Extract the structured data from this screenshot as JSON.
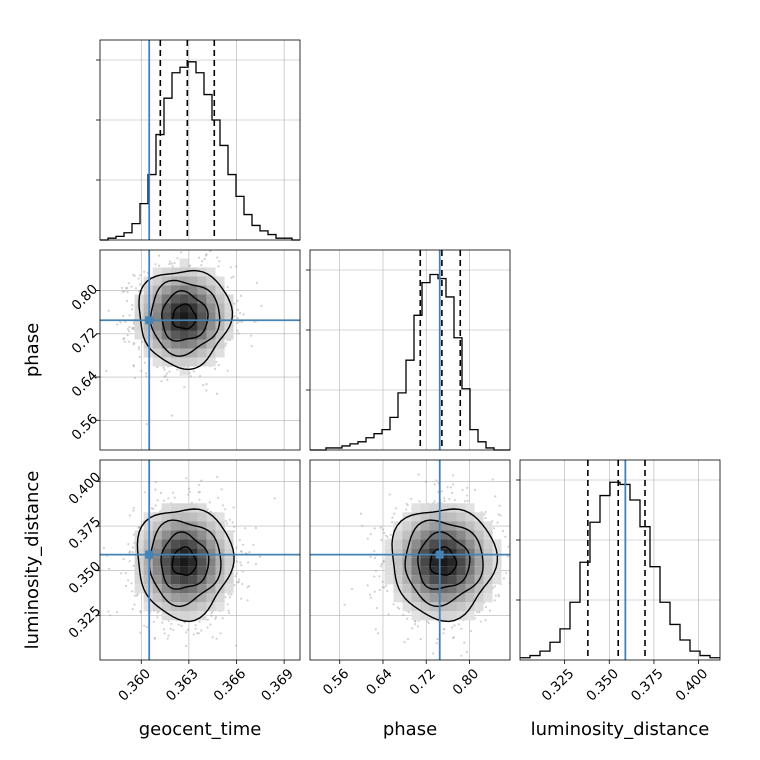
{
  "chart_data": {
    "type": "corner",
    "parameters": [
      "geocent_time",
      "phase",
      "luminosity_distance"
    ],
    "truths": {
      "geocent_time": 0.3605,
      "phase": 0.745,
      "luminosity_distance": 0.359
    },
    "ranges": {
      "geocent_time": [
        0.3574,
        0.37
      ],
      "phase": [
        0.505,
        0.875
      ],
      "luminosity_distance": [
        0.3,
        0.412
      ]
    },
    "ticks": {
      "geocent_time": [
        0.36,
        0.363,
        0.366,
        0.369
      ],
      "phase": [
        0.56,
        0.64,
        0.72,
        0.8
      ],
      "luminosity_distance": [
        0.325,
        0.35,
        0.375,
        0.4
      ]
    },
    "tick_labels": {
      "geocent_time": [
        "0.360",
        "0.363",
        "0.366",
        "0.369"
      ],
      "phase": [
        "0.56",
        "0.64",
        "0.72",
        "0.80"
      ],
      "luminosity_distance": [
        "0.325",
        "0.350",
        "0.375",
        "0.400"
      ]
    },
    "quantiles": {
      "geocent_time": [
        0.3612,
        0.3629,
        0.3646
      ],
      "phase": [
        0.709,
        0.749,
        0.783
      ],
      "luminosity_distance": [
        0.338,
        0.355,
        0.37
      ]
    },
    "marginals": {
      "geocent_time": {
        "edges": [
          0.3574,
          0.37
        ],
        "counts": [
          0,
          1,
          2,
          4,
          9,
          20,
          36,
          58,
          78,
          92,
          95,
          98,
          92,
          80,
          66,
          52,
          36,
          24,
          14,
          8,
          5,
          3,
          1,
          1,
          0
        ],
        "ymax": 110
      },
      "phase": {
        "edges": [
          0.505,
          0.875
        ],
        "counts": [
          0,
          0,
          1,
          1,
          2,
          3,
          4,
          6,
          8,
          10,
          16,
          28,
          44,
          66,
          82,
          86,
          84,
          75,
          55,
          30,
          10,
          4,
          1,
          0,
          0
        ],
        "ymax": 98
      },
      "luminosity_distance": {
        "edges": [
          0.3,
          0.412
        ],
        "counts": [
          1,
          2,
          4,
          8,
          14,
          26,
          44,
          62,
          74,
          80,
          79,
          72,
          60,
          42,
          26,
          16,
          9,
          4,
          2,
          1
        ],
        "ymax": 90
      }
    },
    "pairs": [
      {
        "x": "geocent_time",
        "y": "phase",
        "mean": [
          0.3627,
          0.751
        ],
        "sd": [
          0.00145,
          0.045
        ],
        "corr": 0.0
      },
      {
        "x": "geocent_time",
        "y": "luminosity_distance",
        "mean": [
          0.3627,
          0.355
        ],
        "sd": [
          0.0015,
          0.0155
        ],
        "corr": 0.0
      },
      {
        "x": "phase",
        "y": "luminosity_distance",
        "mean": [
          0.751,
          0.355
        ],
        "sd": [
          0.048,
          0.0155
        ],
        "corr": 0.0
      }
    ],
    "colors": {
      "truth": "#4682b4",
      "hist": "#000000",
      "grid": "#b0b0b0"
    },
    "grid": true
  }
}
